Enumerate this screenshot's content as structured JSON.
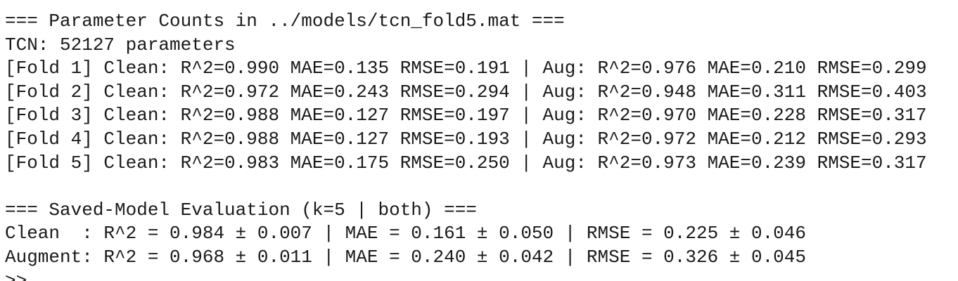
{
  "blocks": [
    {
      "lines": [
        "=== Parameter Counts in ../models/tcn_fold5.mat ===",
        "TCN: 52127 parameters",
        "[Fold 1] Clean: R^2=0.990 MAE=0.135 RMSE=0.191 | Aug: R^2=0.976 MAE=0.210 RMSE=0.299",
        "[Fold 2] Clean: R^2=0.972 MAE=0.243 RMSE=0.294 | Aug: R^2=0.948 MAE=0.311 RMSE=0.403",
        "[Fold 3] Clean: R^2=0.988 MAE=0.127 RMSE=0.197 | Aug: R^2=0.970 MAE=0.228 RMSE=0.317",
        "[Fold 4] Clean: R^2=0.988 MAE=0.127 RMSE=0.193 | Aug: R^2=0.972 MAE=0.212 RMSE=0.293",
        "[Fold 5] Clean: R^2=0.983 MAE=0.175 RMSE=0.250 | Aug: R^2=0.973 MAE=0.239 RMSE=0.317"
      ]
    },
    {
      "lines": [
        "=== Saved-Model Evaluation (k=5 | both) ===",
        "Clean  : R^2 = 0.984 ± 0.007 | MAE = 0.161 ± 0.050 | RMSE = 0.225 ± 0.046",
        "Augment: R^2 = 0.968 ± 0.011 | MAE = 0.240 ± 0.042 | RMSE = 0.326 ± 0.045"
      ]
    }
  ],
  "prompt": ">>"
}
